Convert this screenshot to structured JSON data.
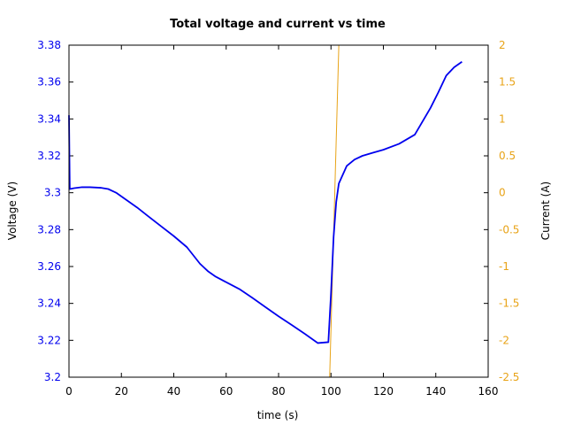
{
  "chart_data": {
    "type": "line",
    "title": "Total voltage and current vs time",
    "xlabel": "time (s)",
    "ylabel": "Voltage (V)",
    "y2label": "Current (A)",
    "xlim": [
      0,
      160
    ],
    "ylim": [
      3.2,
      3.38
    ],
    "y2lim": [
      -2.5,
      2
    ],
    "xticks": [
      "0",
      "20",
      "40",
      "60",
      "80",
      "100",
      "120",
      "140",
      "160"
    ],
    "yticks": [
      "3.2",
      "3.22",
      "3.24",
      "3.26",
      "3.28",
      "3.3",
      "3.32",
      "3.34",
      "3.36",
      "3.38"
    ],
    "y2ticks": [
      "-2.5",
      "-2",
      "-1.5",
      "-1",
      "-0.5",
      "0",
      "0.5",
      "1",
      "1.5",
      "2"
    ],
    "grid": false,
    "legend": null,
    "colors": {
      "voltage": "#0000ee",
      "current": "#e8a317",
      "voltage_axis": "#0000ee",
      "current_axis": "#e8a317"
    },
    "series": [
      {
        "name": "Voltage",
        "axis": "left",
        "x": [
          0,
          0.3,
          2,
          5,
          8,
          12,
          15,
          18,
          22,
          26,
          30,
          35,
          40,
          45,
          50,
          53,
          56,
          60,
          65,
          70,
          75,
          80,
          85,
          90,
          95,
          99,
          100,
          101,
          102,
          103,
          106,
          109,
          112,
          116,
          120,
          126,
          132,
          138,
          141,
          144,
          147,
          150
        ],
        "y": [
          3.342,
          3.302,
          3.3025,
          3.303,
          3.303,
          3.3027,
          3.302,
          3.3,
          3.296,
          3.292,
          3.2875,
          3.282,
          3.2765,
          3.2705,
          3.2615,
          3.2575,
          3.2545,
          3.2515,
          3.2478,
          3.243,
          3.238,
          3.233,
          3.2283,
          3.2235,
          3.2185,
          3.219,
          3.245,
          3.276,
          3.295,
          3.305,
          3.3145,
          3.318,
          3.32,
          3.3217,
          3.3233,
          3.3265,
          3.3315,
          3.346,
          3.3545,
          3.3635,
          3.368,
          3.371
        ]
      },
      {
        "name": "Current",
        "axis": "right",
        "x": [
          99.5,
          103
        ],
        "y": [
          -2.5,
          2
        ]
      }
    ]
  }
}
